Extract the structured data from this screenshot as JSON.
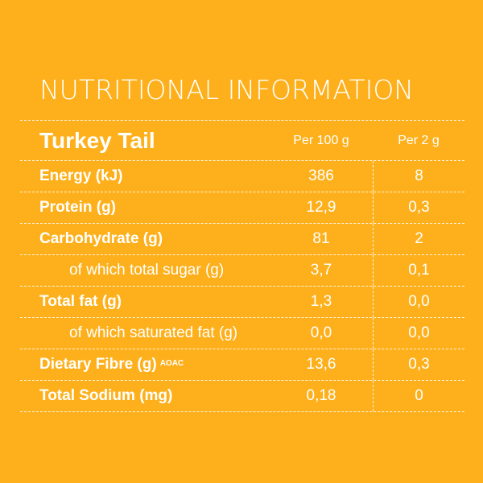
{
  "title": "NUTRITIONAL INFORMATION",
  "product": "Turkey Tail",
  "columns": {
    "per_100": "Per 100 g",
    "per_serving": "Per 2 g"
  },
  "rows": [
    {
      "label": "Energy (kJ)",
      "per_100": "386",
      "per_serving": "8"
    },
    {
      "label": "Protein (g)",
      "per_100": "12,9",
      "per_serving": "0,3"
    },
    {
      "label": "Carbohydrate (g)",
      "per_100": "81",
      "per_serving": "2"
    },
    {
      "label": "of which total sugar (g)",
      "per_100": "3,7",
      "per_serving": "0,1"
    },
    {
      "label": "Total fat (g)",
      "per_100": "1,3",
      "per_serving": "0,0"
    },
    {
      "label": "of which saturated fat (g)",
      "per_100": "0,0",
      "per_serving": "0,0"
    },
    {
      "label": "Dietary Fibre (g)",
      "superscript": "AOAC",
      "per_100": "13,6",
      "per_serving": "0,3"
    },
    {
      "label": "Total Sodium (mg)",
      "per_100": "0,18",
      "per_serving": "0"
    }
  ],
  "colors": {
    "background": "#FDB01B",
    "text": "#FFFFFF"
  }
}
